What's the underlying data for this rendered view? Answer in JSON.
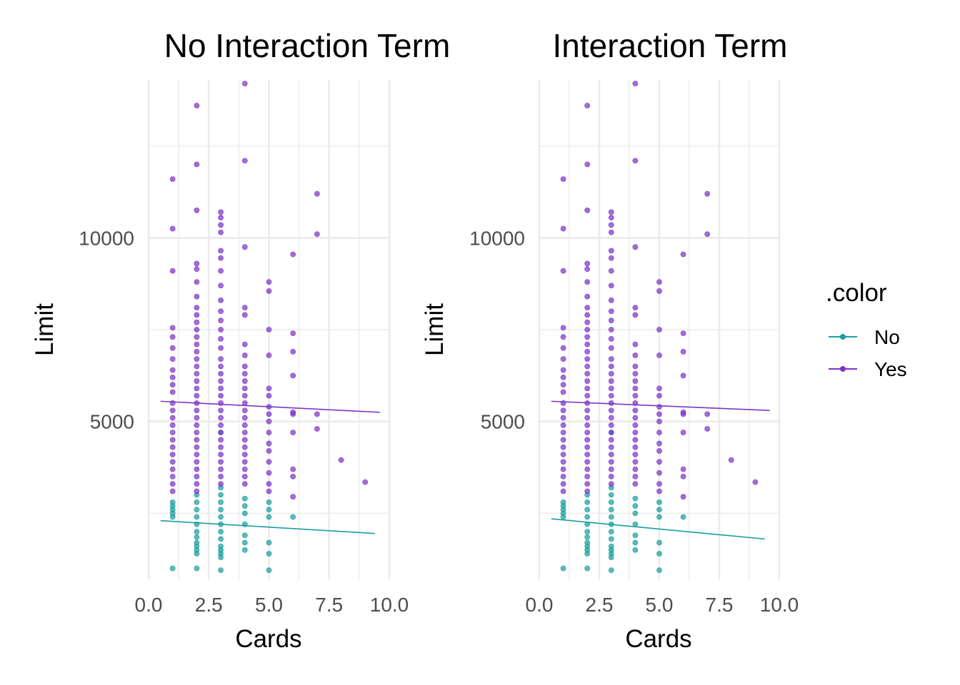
{
  "chart_data": [
    {
      "type": "scatter",
      "title": "No Interaction Term",
      "xlabel": "Cards",
      "ylabel": "Limit",
      "xlim": [
        0,
        10
      ],
      "ylim": [
        700,
        14300
      ],
      "x_ticks": [
        "0.0",
        "2.5",
        "5.0",
        "7.5",
        "10.0"
      ],
      "y_ticks": [
        "5000",
        "10000"
      ],
      "grid": true,
      "series": [
        {
          "name": "No",
          "color": "#1b9e9e",
          "line": [
            [
              0.5,
              2300
            ],
            [
              9.4,
              1950
            ]
          ],
          "points": [
            [
              1,
              2800
            ],
            [
              1,
              2700
            ],
            [
              1,
              2600
            ],
            [
              1,
              2500
            ],
            [
              1,
              2400
            ],
            [
              1,
              1000
            ],
            [
              2,
              3000
            ],
            [
              2,
              2800
            ],
            [
              2,
              2600
            ],
            [
              2,
              2400
            ],
            [
              2,
              2200
            ],
            [
              2,
              2000
            ],
            [
              2,
              1850
            ],
            [
              2,
              1700
            ],
            [
              2,
              1600
            ],
            [
              2,
              1500
            ],
            [
              2,
              1400
            ],
            [
              2,
              1000
            ],
            [
              3,
              4700
            ],
            [
              3,
              3200
            ],
            [
              3,
              3000
            ],
            [
              3,
              2800
            ],
            [
              3,
              2600
            ],
            [
              3,
              2400
            ],
            [
              3,
              2200
            ],
            [
              3,
              2000
            ],
            [
              3,
              1800
            ],
            [
              3,
              1600
            ],
            [
              3,
              1500
            ],
            [
              3,
              1400
            ],
            [
              3,
              1300
            ],
            [
              3,
              950
            ],
            [
              4,
              2900
            ],
            [
              4,
              2700
            ],
            [
              4,
              2500
            ],
            [
              4,
              2200
            ],
            [
              4,
              1900
            ],
            [
              4,
              1700
            ],
            [
              4,
              1500
            ],
            [
              5,
              2800
            ],
            [
              5,
              2600
            ],
            [
              5,
              2400
            ],
            [
              5,
              1700
            ],
            [
              5,
              1400
            ],
            [
              5,
              950
            ],
            [
              6,
              2400
            ]
          ]
        },
        {
          "name": "Yes",
          "color": "#7b35c8",
          "line": [
            [
              0.5,
              5550
            ],
            [
              9.6,
              5250
            ]
          ],
          "points": [
            [
              1,
              11600
            ],
            [
              1,
              10250
            ],
            [
              1,
              9100
            ],
            [
              1,
              7550
            ],
            [
              1,
              7300
            ],
            [
              1,
              7000
            ],
            [
              1,
              6700
            ],
            [
              1,
              6400
            ],
            [
              1,
              6200
            ],
            [
              1,
              6000
            ],
            [
              1,
              5800
            ],
            [
              1,
              5500
            ],
            [
              1,
              5300
            ],
            [
              1,
              5100
            ],
            [
              1,
              4900
            ],
            [
              1,
              4700
            ],
            [
              1,
              4500
            ],
            [
              1,
              4300
            ],
            [
              1,
              4100
            ],
            [
              1,
              3900
            ],
            [
              1,
              3700
            ],
            [
              1,
              3500
            ],
            [
              1,
              3300
            ],
            [
              1,
              3100
            ],
            [
              2,
              13600
            ],
            [
              2,
              12000
            ],
            [
              2,
              10750
            ],
            [
              2,
              9300
            ],
            [
              2,
              9150
            ],
            [
              2,
              8800
            ],
            [
              2,
              8400
            ],
            [
              2,
              8100
            ],
            [
              2,
              7900
            ],
            [
              2,
              7700
            ],
            [
              2,
              7500
            ],
            [
              2,
              7300
            ],
            [
              2,
              7100
            ],
            [
              2,
              6900
            ],
            [
              2,
              6700
            ],
            [
              2,
              6500
            ],
            [
              2,
              6300
            ],
            [
              2,
              6100
            ],
            [
              2,
              5900
            ],
            [
              2,
              5700
            ],
            [
              2,
              5500
            ],
            [
              2,
              5300
            ],
            [
              2,
              5100
            ],
            [
              2,
              4900
            ],
            [
              2,
              4700
            ],
            [
              2,
              4500
            ],
            [
              2,
              4300
            ],
            [
              2,
              4100
            ],
            [
              2,
              3900
            ],
            [
              2,
              3700
            ],
            [
              2,
              3500
            ],
            [
              2,
              3300
            ],
            [
              2,
              3100
            ],
            [
              3,
              10700
            ],
            [
              3,
              10550
            ],
            [
              3,
              10350
            ],
            [
              3,
              10150
            ],
            [
              3,
              9650
            ],
            [
              3,
              9450
            ],
            [
              3,
              9100
            ],
            [
              3,
              8700
            ],
            [
              3,
              8300
            ],
            [
              3,
              8000
            ],
            [
              3,
              7750
            ],
            [
              3,
              7500
            ],
            [
              3,
              7250
            ],
            [
              3,
              7000
            ],
            [
              3,
              6700
            ],
            [
              3,
              6500
            ],
            [
              3,
              6300
            ],
            [
              3,
              6100
            ],
            [
              3,
              5900
            ],
            [
              3,
              5700
            ],
            [
              3,
              5500
            ],
            [
              3,
              5300
            ],
            [
              3,
              5100
            ],
            [
              3,
              4900
            ],
            [
              3,
              4700
            ],
            [
              3,
              4500
            ],
            [
              3,
              4300
            ],
            [
              3,
              4100
            ],
            [
              3,
              3900
            ],
            [
              3,
              3700
            ],
            [
              3,
              3500
            ],
            [
              3,
              3300
            ],
            [
              4,
              14200
            ],
            [
              4,
              12100
            ],
            [
              4,
              9750
            ],
            [
              4,
              8100
            ],
            [
              4,
              7900
            ],
            [
              4,
              7100
            ],
            [
              4,
              6800
            ],
            [
              4,
              6500
            ],
            [
              4,
              6300
            ],
            [
              4,
              6100
            ],
            [
              4,
              5900
            ],
            [
              4,
              5700
            ],
            [
              4,
              5500
            ],
            [
              4,
              5300
            ],
            [
              4,
              5100
            ],
            [
              4,
              4900
            ],
            [
              4,
              4700
            ],
            [
              4,
              4500
            ],
            [
              4,
              4300
            ],
            [
              4,
              4100
            ],
            [
              4,
              3900
            ],
            [
              4,
              3700
            ],
            [
              4,
              3500
            ],
            [
              4,
              3300
            ],
            [
              5,
              8800
            ],
            [
              5,
              8550
            ],
            [
              5,
              7500
            ],
            [
              5,
              6800
            ],
            [
              5,
              5900
            ],
            [
              5,
              5700
            ],
            [
              5,
              5400
            ],
            [
              5,
              5200
            ],
            [
              5,
              5000
            ],
            [
              5,
              4700
            ],
            [
              5,
              4400
            ],
            [
              5,
              4200
            ],
            [
              5,
              3900
            ],
            [
              5,
              3600
            ],
            [
              5,
              3300
            ],
            [
              5,
              3100
            ],
            [
              6,
              9550
            ],
            [
              6,
              7400
            ],
            [
              6,
              6900
            ],
            [
              6,
              6250
            ],
            [
              6,
              5250
            ],
            [
              6,
              5200
            ],
            [
              6,
              4700
            ],
            [
              6,
              3700
            ],
            [
              6,
              3500
            ],
            [
              6,
              2950
            ],
            [
              7,
              11200
            ],
            [
              7,
              10100
            ],
            [
              7,
              5200
            ],
            [
              7,
              4800
            ],
            [
              8,
              3950
            ],
            [
              9,
              3350
            ]
          ]
        }
      ]
    },
    {
      "type": "scatter",
      "title": "Interaction Term",
      "xlabel": "Cards",
      "ylabel": "Limit",
      "xlim": [
        0,
        10
      ],
      "ylim": [
        700,
        14300
      ],
      "x_ticks": [
        "0.0",
        "2.5",
        "5.0",
        "7.5",
        "10.0"
      ],
      "y_ticks": [
        "5000",
        "10000"
      ],
      "grid": true,
      "series": [
        {
          "name": "No",
          "color": "#1b9e9e",
          "line": [
            [
              0.5,
              2350
            ],
            [
              9.4,
              1800
            ]
          ],
          "points": "same-as-panel-1"
        },
        {
          "name": "Yes",
          "color": "#7b35c8",
          "line": [
            [
              0.5,
              5550
            ],
            [
              9.6,
              5300
            ]
          ],
          "points": "same-as-panel-1"
        }
      ]
    }
  ],
  "legend": {
    "title": ".color",
    "position": "right",
    "items": [
      {
        "label": "No",
        "color": "#1b9e9e"
      },
      {
        "label": "Yes",
        "color": "#7b35c8"
      }
    ]
  }
}
